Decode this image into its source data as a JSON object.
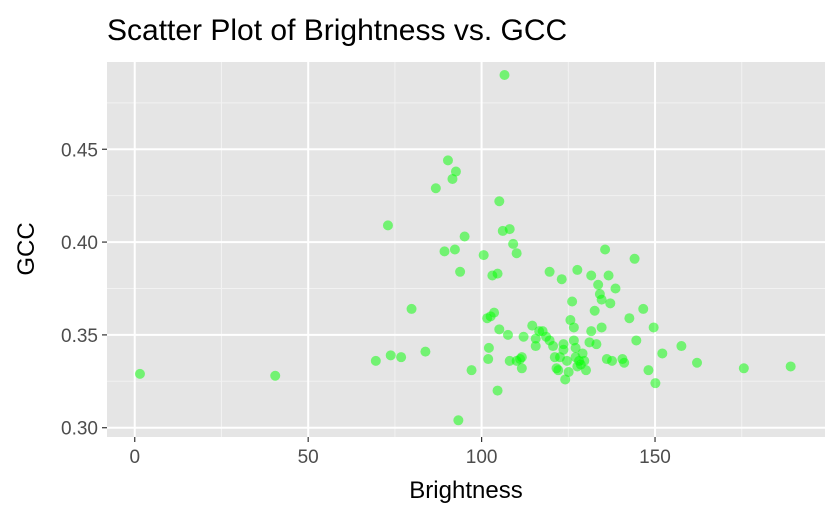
{
  "chart_data": {
    "type": "scatter",
    "title": "Scatter Plot of Brightness vs. GCC",
    "xlabel": "Brightness",
    "ylabel": "GCC",
    "xlim": [
      -8,
      199
    ],
    "ylim": [
      0.295,
      0.497
    ],
    "x_ticks": [
      0,
      50,
      100,
      150
    ],
    "x_tick_labels": [
      "0",
      "50",
      "100",
      "150"
    ],
    "y_ticks": [
      0.3,
      0.35,
      0.4,
      0.45
    ],
    "y_tick_labels": [
      "0.30",
      "0.35",
      "0.40",
      "0.45"
    ],
    "grid": true,
    "background": "#e5e5e5",
    "point_color": "#00ff00",
    "point_alpha": 0.5,
    "points": [
      {
        "x": 1.5,
        "y": 0.329
      },
      {
        "x": 40.5,
        "y": 0.328
      },
      {
        "x": 69.5,
        "y": 0.336
      },
      {
        "x": 73.0,
        "y": 0.409
      },
      {
        "x": 73.8,
        "y": 0.339
      },
      {
        "x": 76.8,
        "y": 0.338
      },
      {
        "x": 79.8,
        "y": 0.364
      },
      {
        "x": 83.8,
        "y": 0.341
      },
      {
        "x": 86.8,
        "y": 0.429
      },
      {
        "x": 89.3,
        "y": 0.395
      },
      {
        "x": 90.3,
        "y": 0.444
      },
      {
        "x": 91.6,
        "y": 0.434
      },
      {
        "x": 92.6,
        "y": 0.438
      },
      {
        "x": 92.3,
        "y": 0.396
      },
      {
        "x": 93.3,
        "y": 0.304
      },
      {
        "x": 93.8,
        "y": 0.384
      },
      {
        "x": 95.1,
        "y": 0.403
      },
      {
        "x": 97.1,
        "y": 0.331
      },
      {
        "x": 100.6,
        "y": 0.393
      },
      {
        "x": 101.6,
        "y": 0.359
      },
      {
        "x": 101.9,
        "y": 0.337
      },
      {
        "x": 102.1,
        "y": 0.343
      },
      {
        "x": 102.6,
        "y": 0.36
      },
      {
        "x": 103.1,
        "y": 0.382
      },
      {
        "x": 103.6,
        "y": 0.362
      },
      {
        "x": 104.6,
        "y": 0.383
      },
      {
        "x": 104.6,
        "y": 0.32
      },
      {
        "x": 105.1,
        "y": 0.353
      },
      {
        "x": 105.1,
        "y": 0.422
      },
      {
        "x": 106.1,
        "y": 0.406
      },
      {
        "x": 106.6,
        "y": 0.49
      },
      {
        "x": 107.6,
        "y": 0.35
      },
      {
        "x": 108.1,
        "y": 0.407
      },
      {
        "x": 108.1,
        "y": 0.336
      },
      {
        "x": 109.1,
        "y": 0.399
      },
      {
        "x": 110.1,
        "y": 0.394
      },
      {
        "x": 110.1,
        "y": 0.336
      },
      {
        "x": 111.1,
        "y": 0.337
      },
      {
        "x": 111.6,
        "y": 0.332
      },
      {
        "x": 111.6,
        "y": 0.338
      },
      {
        "x": 112.1,
        "y": 0.349
      },
      {
        "x": 114.6,
        "y": 0.355
      },
      {
        "x": 115.6,
        "y": 0.348
      },
      {
        "x": 115.6,
        "y": 0.344
      },
      {
        "x": 116.6,
        "y": 0.352
      },
      {
        "x": 117.6,
        "y": 0.352
      },
      {
        "x": 118.6,
        "y": 0.349
      },
      {
        "x": 119.6,
        "y": 0.384
      },
      {
        "x": 119.6,
        "y": 0.347
      },
      {
        "x": 120.6,
        "y": 0.344
      },
      {
        "x": 121.1,
        "y": 0.338
      },
      {
        "x": 121.6,
        "y": 0.332
      },
      {
        "x": 122.1,
        "y": 0.331
      },
      {
        "x": 122.6,
        "y": 0.338
      },
      {
        "x": 123.1,
        "y": 0.38
      },
      {
        "x": 123.6,
        "y": 0.345
      },
      {
        "x": 123.6,
        "y": 0.342
      },
      {
        "x": 124.1,
        "y": 0.326
      },
      {
        "x": 124.6,
        "y": 0.336
      },
      {
        "x": 125.1,
        "y": 0.33
      },
      {
        "x": 125.6,
        "y": 0.358
      },
      {
        "x": 126.1,
        "y": 0.368
      },
      {
        "x": 126.6,
        "y": 0.354
      },
      {
        "x": 126.6,
        "y": 0.347
      },
      {
        "x": 127.1,
        "y": 0.343
      },
      {
        "x": 127.1,
        "y": 0.338
      },
      {
        "x": 127.6,
        "y": 0.385
      },
      {
        "x": 127.6,
        "y": 0.333
      },
      {
        "x": 128.1,
        "y": 0.336
      },
      {
        "x": 128.6,
        "y": 0.334
      },
      {
        "x": 129.1,
        "y": 0.34
      },
      {
        "x": 129.6,
        "y": 0.336
      },
      {
        "x": 130.1,
        "y": 0.331
      },
      {
        "x": 131.1,
        "y": 0.346
      },
      {
        "x": 131.6,
        "y": 0.352
      },
      {
        "x": 131.6,
        "y": 0.382
      },
      {
        "x": 132.6,
        "y": 0.363
      },
      {
        "x": 133.1,
        "y": 0.345
      },
      {
        "x": 133.6,
        "y": 0.377
      },
      {
        "x": 134.1,
        "y": 0.372
      },
      {
        "x": 134.6,
        "y": 0.369
      },
      {
        "x": 134.6,
        "y": 0.354
      },
      {
        "x": 135.6,
        "y": 0.396
      },
      {
        "x": 136.1,
        "y": 0.337
      },
      {
        "x": 136.6,
        "y": 0.382
      },
      {
        "x": 137.1,
        "y": 0.367
      },
      {
        "x": 137.6,
        "y": 0.336
      },
      {
        "x": 138.6,
        "y": 0.375
      },
      {
        "x": 140.6,
        "y": 0.337
      },
      {
        "x": 141.1,
        "y": 0.335
      },
      {
        "x": 142.6,
        "y": 0.359
      },
      {
        "x": 144.1,
        "y": 0.391
      },
      {
        "x": 144.6,
        "y": 0.347
      },
      {
        "x": 146.6,
        "y": 0.364
      },
      {
        "x": 148.1,
        "y": 0.331
      },
      {
        "x": 149.6,
        "y": 0.354
      },
      {
        "x": 150.1,
        "y": 0.324
      },
      {
        "x": 152.1,
        "y": 0.34
      },
      {
        "x": 157.6,
        "y": 0.344
      },
      {
        "x": 162.1,
        "y": 0.335
      },
      {
        "x": 175.6,
        "y": 0.332
      },
      {
        "x": 189.1,
        "y": 0.333
      }
    ]
  }
}
